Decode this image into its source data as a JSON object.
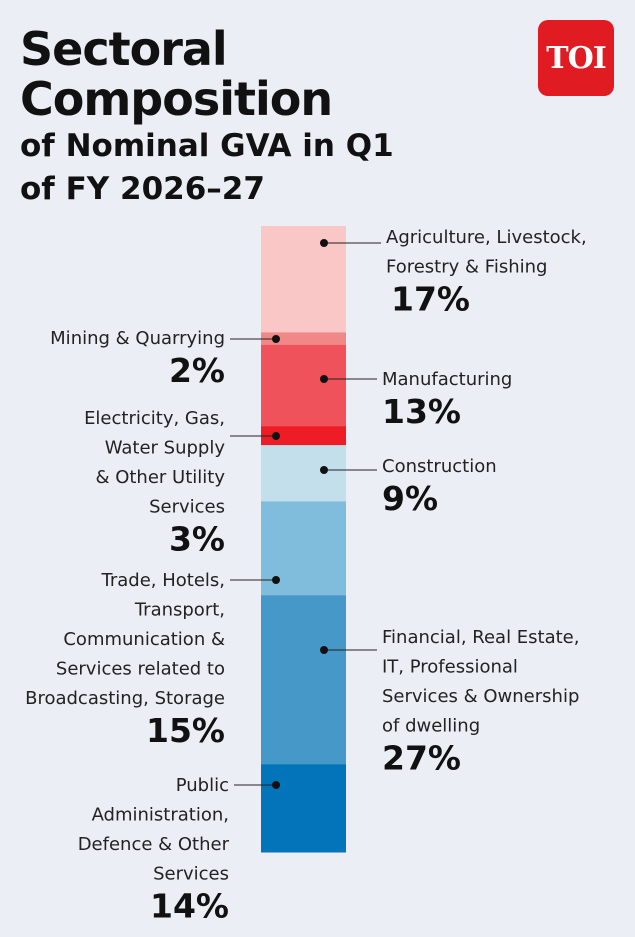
{
  "title": {
    "line1": "Sectoral",
    "line2": "Composition",
    "line3": "of Nominal GVA in Q1",
    "line4": "of FY 2026–27"
  },
  "logo_text": "TOI",
  "colors": {
    "background": "#ebeef5",
    "logo": "#e11b22"
  },
  "chart_data": {
    "type": "bar",
    "stacked": true,
    "orientation": "vertical",
    "title": "Sectoral Composition of Nominal GVA in Q1 of FY 2026–27",
    "unit": "%",
    "segments": [
      {
        "label": [
          "Agriculture, Livestock,",
          "Forestry & Fishing"
        ],
        "value": 17,
        "display": "17%",
        "color": "#f8c7c6",
        "side": "right"
      },
      {
        "label": [
          "Mining & Quarrying"
        ],
        "value": 2,
        "display": "2%",
        "color": "#f08888",
        "side": "left"
      },
      {
        "label": [
          "Manufacturing"
        ],
        "value": 13,
        "display": "13%",
        "color": "#f0525b",
        "side": "right"
      },
      {
        "label": [
          "Electricity, Gas,",
          "Water Supply",
          "& Other Utility",
          "Services"
        ],
        "value": 3,
        "display": "3%",
        "color": "#ee1c25",
        "side": "left"
      },
      {
        "label": [
          "Construction"
        ],
        "value": 9,
        "display": "9%",
        "color": "#c4dfec",
        "side": "right"
      },
      {
        "label": [
          "Trade, Hotels,",
          "Transport,",
          "Communication &",
          "Services related to",
          "Broadcasting, Storage"
        ],
        "value": 15,
        "display": "15%",
        "color": "#80bcdb",
        "side": "left"
      },
      {
        "label": [
          "Financial, Real Estate,",
          "IT, Professional",
          "Services & Ownership",
          "of dwelling"
        ],
        "value": 27,
        "display": "27%",
        "color": "#4598c8",
        "side": "right"
      },
      {
        "label": [
          "Public",
          "Administration,",
          "Defence & Other",
          "Services"
        ],
        "value": 14,
        "display": "14%",
        "color": "#0374ba",
        "side": "left"
      }
    ]
  }
}
